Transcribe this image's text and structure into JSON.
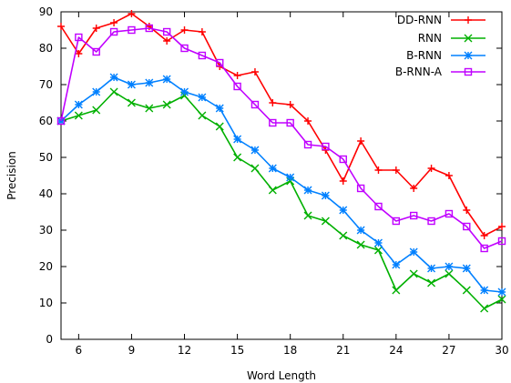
{
  "chart_data": {
    "type": "line",
    "xlabel": "Word Length",
    "ylabel": "Precision",
    "xlim": [
      5,
      30
    ],
    "ylim": [
      0,
      90
    ],
    "xticks": [
      6,
      9,
      12,
      15,
      18,
      21,
      24,
      27,
      30
    ],
    "yticks": [
      0,
      10,
      20,
      30,
      40,
      50,
      60,
      70,
      80,
      90
    ],
    "grid": false,
    "legend_position": "top-right",
    "x": [
      5,
      6,
      7,
      8,
      9,
      10,
      11,
      12,
      13,
      14,
      15,
      16,
      17,
      18,
      19,
      20,
      21,
      22,
      23,
      24,
      25,
      26,
      27,
      28,
      29,
      30
    ],
    "series": [
      {
        "name": "DD-RNN",
        "color": "#ff0000",
        "marker": "plus",
        "values": [
          86,
          78.5,
          85.5,
          87,
          89.5,
          86,
          82,
          85,
          84.5,
          75,
          72.5,
          73.5,
          65,
          64.5,
          60,
          52,
          43.5,
          54.5,
          46.5,
          46.5,
          41.5,
          47,
          45,
          35.5,
          28.5,
          31
        ]
      },
      {
        "name": "RNN",
        "color": "#00b000",
        "marker": "x",
        "values": [
          60,
          61.5,
          63,
          68,
          65,
          63.5,
          64.5,
          67,
          61.5,
          58.5,
          50,
          47,
          41,
          43.5,
          34,
          32.5,
          28.5,
          26,
          24.5,
          13.5,
          18,
          15.5,
          18,
          13.5,
          8.5,
          11
        ]
      },
      {
        "name": "B-RNN",
        "color": "#0080ff",
        "marker": "star",
        "values": [
          60,
          64.5,
          68,
          72,
          70,
          70.5,
          71.5,
          68,
          66.5,
          63.5,
          55,
          52,
          47,
          44.5,
          41,
          39.5,
          35.5,
          30,
          26.5,
          20.5,
          24,
          19.5,
          20,
          19.5,
          13.5,
          13
        ]
      },
      {
        "name": "B-RNN-A",
        "color": "#c000ff",
        "marker": "square",
        "values": [
          60,
          83,
          79,
          84.5,
          85,
          85.5,
          84.5,
          80,
          78,
          76,
          69.5,
          64.5,
          59.5,
          59.5,
          53.5,
          53,
          49.5,
          41.5,
          36.5,
          32.5,
          34,
          32.5,
          34.5,
          31,
          25,
          27
        ]
      }
    ]
  }
}
